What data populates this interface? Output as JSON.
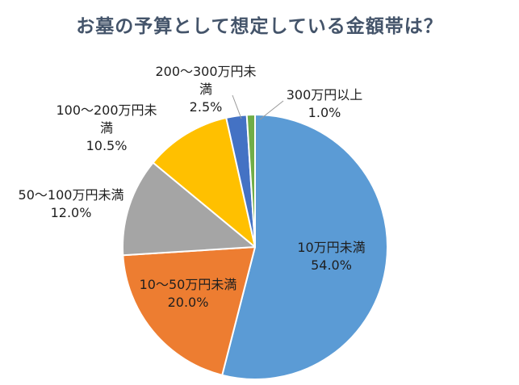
{
  "title": "お墓の予算として想定している金額帯は？",
  "chart_data": {
    "type": "pie",
    "title": "お墓の予算として想定している金額帯は？",
    "categories": [
      "10万円未満",
      "10～50万円未満",
      "50～100万円未満",
      "100～200万円未満",
      "200～300万円未満",
      "300万円以上"
    ],
    "values": [
      54.0,
      20.0,
      12.0,
      10.5,
      2.5,
      1.0
    ],
    "unit": "%",
    "colors": [
      "#5B9BD5",
      "#ED7D31",
      "#A5A5A5",
      "#FFC000",
      "#4472C4",
      "#70AD47"
    ],
    "start_angle_deg": 0,
    "direction": "clockwise",
    "legend_position": "none",
    "grid": false,
    "labels": [
      {
        "line1": "10万円未満",
        "pct": "54.0%",
        "placement": "inside"
      },
      {
        "line1": "10～50万円未満",
        "pct": "20.0%",
        "placement": "inside"
      },
      {
        "line1": "50～100万円未満",
        "pct": "12.0%",
        "placement": "outside"
      },
      {
        "line1": "100～200万円未",
        "line2": "満",
        "pct": "10.5%",
        "placement": "outside"
      },
      {
        "line1": "200～300万円未",
        "line2": "満",
        "pct": "2.5%",
        "placement": "outside-leader"
      },
      {
        "line1": "300万円以上",
        "pct": "1.0%",
        "placement": "outside-leader"
      }
    ]
  }
}
